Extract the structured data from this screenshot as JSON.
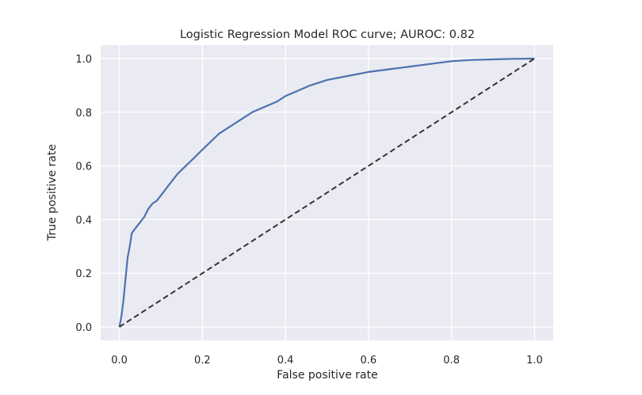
{
  "chart_data": {
    "type": "line",
    "title": "Logistic Regression Model ROC curve; AUROC: 0.82",
    "xlabel": "False positive rate",
    "ylabel": "True positive rate",
    "xlim": [
      -0.045,
      1.045
    ],
    "ylim": [
      -0.05,
      1.05
    ],
    "xticks": [
      0.0,
      0.2,
      0.4,
      0.6,
      0.8,
      1.0
    ],
    "xtick_labels": [
      "0.0",
      "0.2",
      "0.4",
      "0.6",
      "0.8",
      "1.0"
    ],
    "yticks": [
      0.0,
      0.2,
      0.4,
      0.6,
      0.8,
      1.0
    ],
    "ytick_labels": [
      "0.0",
      "0.2",
      "0.4",
      "0.6",
      "0.8",
      "1.0"
    ],
    "grid": true,
    "legend": "none",
    "background": "#eaeaf2",
    "series": [
      {
        "color": "#4c72b0",
        "style": "solid",
        "x": [
          0.0,
          0.005,
          0.01,
          0.015,
          0.02,
          0.025,
          0.03,
          0.035,
          0.04,
          0.05,
          0.06,
          0.07,
          0.08,
          0.09,
          0.1,
          0.12,
          0.14,
          0.16,
          0.18,
          0.2,
          0.22,
          0.24,
          0.26,
          0.28,
          0.3,
          0.32,
          0.35,
          0.38,
          0.4,
          0.43,
          0.46,
          0.5,
          0.55,
          0.6,
          0.65,
          0.7,
          0.75,
          0.8,
          0.85,
          0.9,
          0.95,
          1.0
        ],
        "y": [
          0.0,
          0.04,
          0.1,
          0.18,
          0.26,
          0.3,
          0.35,
          0.36,
          0.37,
          0.39,
          0.41,
          0.44,
          0.46,
          0.47,
          0.49,
          0.53,
          0.57,
          0.6,
          0.63,
          0.66,
          0.69,
          0.72,
          0.74,
          0.76,
          0.78,
          0.8,
          0.82,
          0.84,
          0.86,
          0.88,
          0.9,
          0.92,
          0.935,
          0.95,
          0.96,
          0.97,
          0.98,
          0.99,
          0.995,
          0.997,
          0.999,
          1.0
        ]
      },
      {
        "color": "#333333",
        "style": "dashed",
        "x": [
          0.0,
          1.0
        ],
        "y": [
          0.0,
          1.0
        ]
      }
    ]
  }
}
